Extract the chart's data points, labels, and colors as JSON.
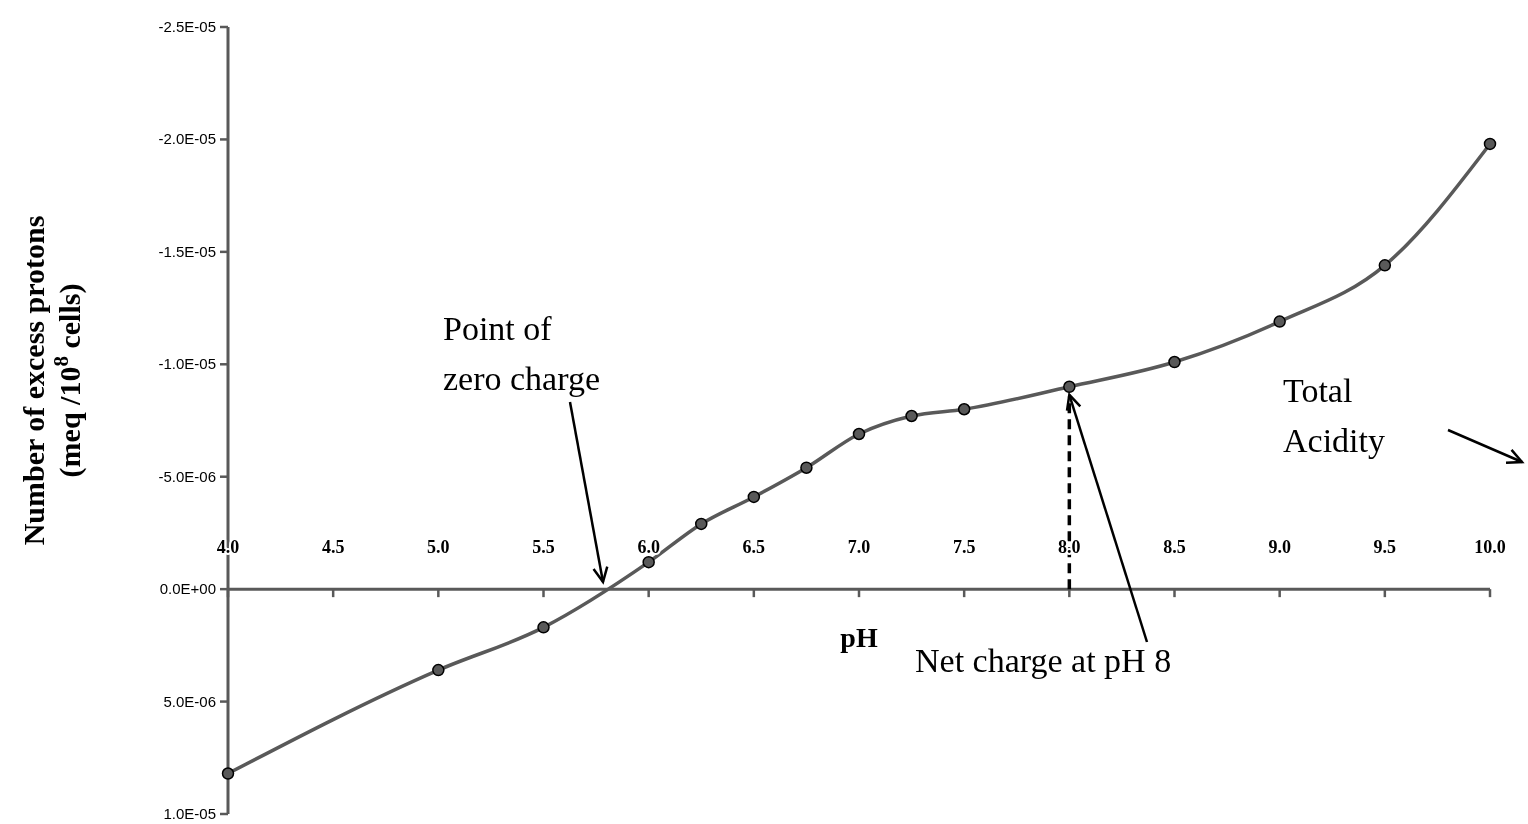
{
  "chart_data": {
    "type": "line",
    "xlabel": "pH",
    "ylabel": "Number of excess protons\n(meq /10$^{8}$ cells)",
    "x": [
      4.0,
      5.0,
      5.5,
      6.0,
      6.25,
      6.5,
      6.75,
      7.0,
      7.25,
      7.5,
      8.0,
      8.5,
      9.0,
      9.5,
      10.0
    ],
    "series": [
      {
        "color": "#595959",
        "values": [
          8.2e-06,
          3.6e-06,
          1.7e-06,
          -1.2e-06,
          -2.9e-06,
          -4.1e-06,
          -5.4e-06,
          -6.9e-06,
          -7.7e-06,
          -8e-06,
          -9e-06,
          -1.01e-05,
          -1.19e-05,
          -1.44e-05,
          -1.98e-05
        ]
      }
    ],
    "marker": "circle",
    "xlim": [
      4.0,
      10.0
    ],
    "xticks": [
      {
        "value": 4.0,
        "label": "4.0"
      },
      {
        "value": 4.5,
        "label": "4.5"
      },
      {
        "value": 5.0,
        "label": "5.0"
      },
      {
        "value": 5.5,
        "label": "5.5"
      },
      {
        "value": 6.0,
        "label": "6.0"
      },
      {
        "value": 6.5,
        "label": "6.5"
      },
      {
        "value": 7.0,
        "label": "7.0"
      },
      {
        "value": 7.5,
        "label": "7.5"
      },
      {
        "value": 8.0,
        "label": "8.0"
      },
      {
        "value": 8.5,
        "label": "8.5"
      },
      {
        "value": 9.0,
        "label": "9.0"
      },
      {
        "value": 9.5,
        "label": "9.5"
      },
      {
        "value": 10.0,
        "label": "10.0"
      }
    ],
    "ylim": [
      1e-05,
      -2.5e-05
    ],
    "yticks": [
      {
        "value": -2.5e-05,
        "label": "-2.5E-05"
      },
      {
        "value": -2e-05,
        "label": "-2.0E-05"
      },
      {
        "value": -1.5e-05,
        "label": "-1.5E-05"
      },
      {
        "value": -1e-05,
        "label": "-1.0E-05"
      },
      {
        "value": -5e-06,
        "label": "-5.0E-06"
      },
      {
        "value": 0,
        "label": "0.0E+00"
      },
      {
        "value": 5e-06,
        "label": "5.0E-06"
      },
      {
        "value": 1e-05,
        "label": "1.0E-05"
      }
    ],
    "ref_lines": [
      {
        "axis": "x",
        "value": 8.0,
        "line_style": "dashed",
        "color": "#000000"
      }
    ],
    "annotations": [
      "Point of\nzero charge",
      {
        "text": "Net charge at pH 8",
        "x": 8.0,
        "y": -9e-06
      },
      "Total\nAcidity"
    ],
    "grid": false
  }
}
